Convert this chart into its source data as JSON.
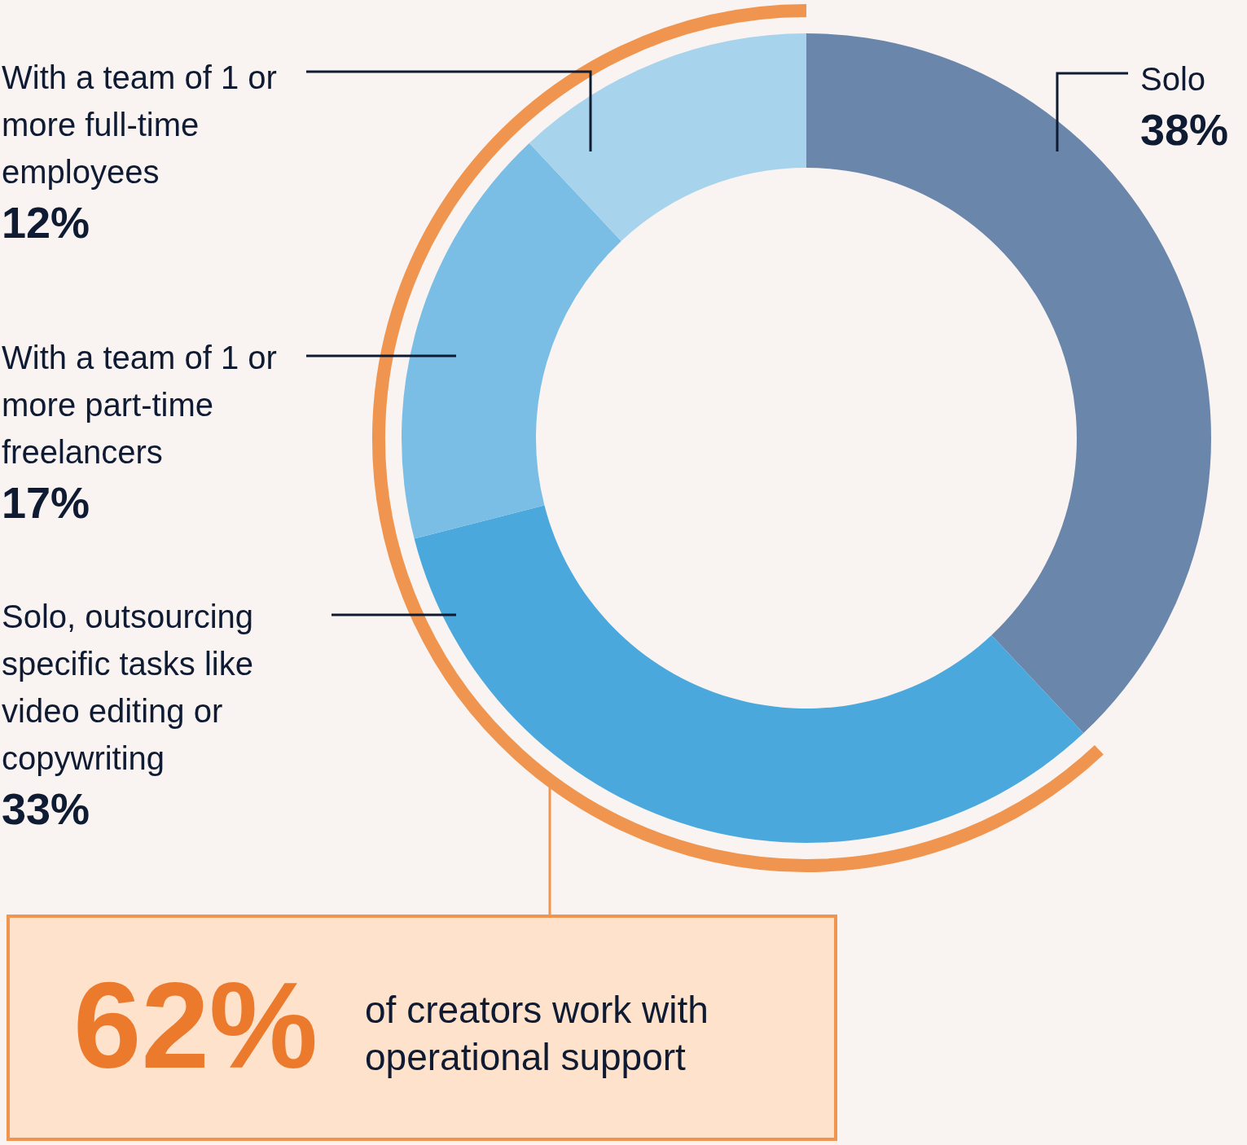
{
  "chart_data": {
    "type": "donut",
    "categories": [
      "Solo",
      "Solo, outsourcing specific tasks like video editing or copywriting",
      "With a team of 1 or more part-time freelancers",
      "With a team of 1 or more full-time employees"
    ],
    "values": [
      38,
      33,
      17,
      12
    ],
    "colors": [
      "#6a86ab",
      "#4ba8dc",
      "#7abde5",
      "#a7d3ed"
    ],
    "value_labels": [
      "38%",
      "33%",
      "17%",
      "12%"
    ],
    "legend": false,
    "annotations": [
      "62%",
      "of creators work with operational support"
    ]
  }
}
